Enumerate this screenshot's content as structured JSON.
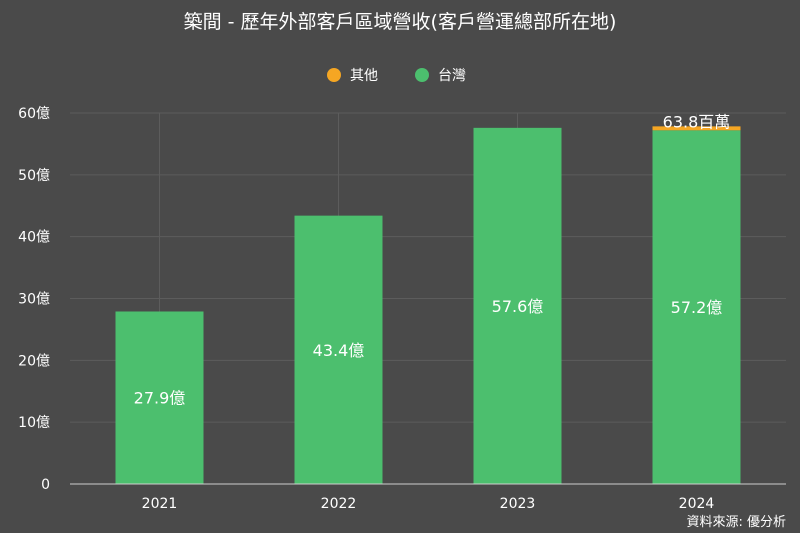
{
  "chart_data": {
    "type": "bar",
    "stacked": true,
    "title": "築間 - 歷年外部客戶區域營收(客戶營運總部所在地)",
    "categories": [
      "2021",
      "2022",
      "2023",
      "2024"
    ],
    "series": [
      {
        "name": "台灣",
        "color": "#4cbf6e",
        "values": [
          27.9,
          43.4,
          57.6,
          57.2
        ],
        "labels": [
          "27.9億",
          "43.4億",
          "57.6億",
          "57.2億"
        ]
      },
      {
        "name": "其他",
        "color": "#f5a623",
        "values": [
          0,
          0,
          0,
          0.638
        ],
        "labels": [
          "",
          "",
          "",
          "63.8百萬"
        ]
      }
    ],
    "legend": {
      "position": "top",
      "order": [
        "其他",
        "台灣"
      ]
    },
    "yticks": [
      {
        "value": 0,
        "label": "0"
      },
      {
        "value": 10,
        "label": "10億"
      },
      {
        "value": 20,
        "label": "20億"
      },
      {
        "value": 30,
        "label": "30億"
      },
      {
        "value": 40,
        "label": "40億"
      },
      {
        "value": 50,
        "label": "50億"
      },
      {
        "value": 60,
        "label": "60億"
      }
    ],
    "ylim": [
      0,
      60
    ],
    "grid": true,
    "source": "資料來源: 優分析"
  }
}
